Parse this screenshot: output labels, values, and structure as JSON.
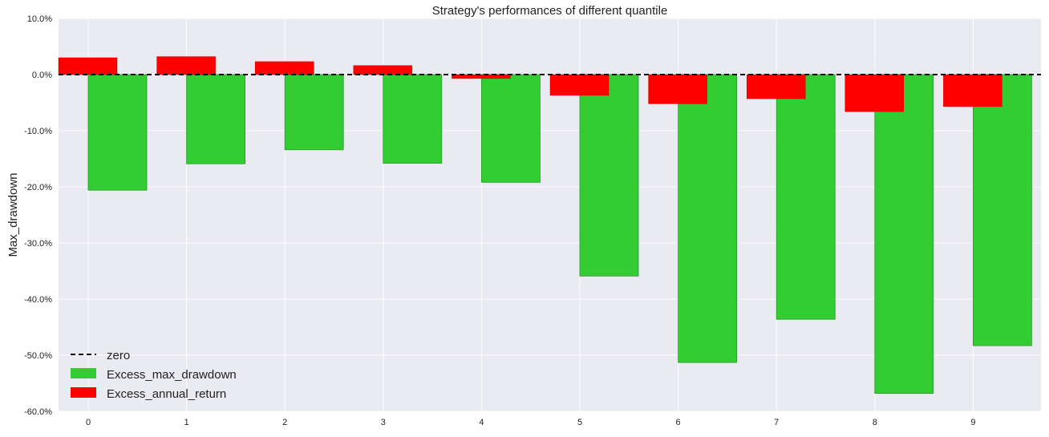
{
  "chart_data": {
    "type": "bar",
    "title": "Strategy's performances of different quantile",
    "xlabel": "",
    "ylabel": "Max_drawdown",
    "categories": [
      "0",
      "1",
      "2",
      "3",
      "4",
      "5",
      "6",
      "7",
      "8",
      "9"
    ],
    "ylim": [
      -60,
      10
    ],
    "yticks": [
      10,
      0,
      -10,
      -20,
      -30,
      -40,
      -50,
      -60
    ],
    "ytick_labels": [
      "10.0%",
      "0.0%",
      "-10.0%",
      "-20.0%",
      "-30.0%",
      "-40.0%",
      "-50.0%",
      "-60.0%"
    ],
    "grid": true,
    "legend_position": "lower-left",
    "series": [
      {
        "name": "Excess_max_drawdown",
        "color": "#33cc33",
        "values": [
          -20.6,
          -15.9,
          -13.4,
          -15.8,
          -19.2,
          -35.9,
          -51.3,
          -43.6,
          -56.8,
          -48.3
        ]
      },
      {
        "name": "Excess_annual_return",
        "color": "#ff0000",
        "values": [
          3.0,
          3.2,
          2.3,
          1.6,
          -0.7,
          -3.7,
          -5.2,
          -4.3,
          -6.6,
          -5.7
        ]
      }
    ],
    "reference_line": {
      "name": "zero",
      "value": 0,
      "color": "#000000",
      "style": "dashed"
    },
    "colors": {
      "plot_background": "#eaeaf2",
      "grid": "#ffffff"
    }
  }
}
